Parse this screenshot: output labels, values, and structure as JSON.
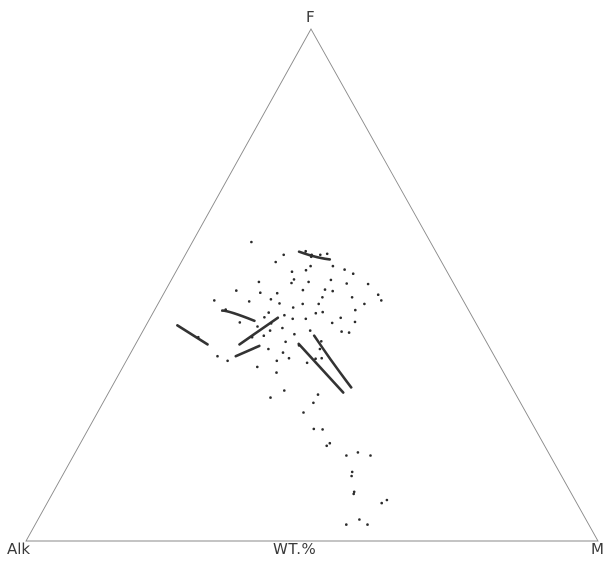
{
  "chart_data": {
    "type": "ternary-scatter",
    "vertices": {
      "top": "F",
      "left": "Alk",
      "right": "M"
    },
    "units_label": "WT.%",
    "grid": false,
    "colors": {
      "line": "#8a8a8a",
      "point": "#2b2b2b",
      "trend": "#333333"
    },
    "points": [
      [
        56.6,
        22.7,
        20.7
      ],
      [
        53.7,
        23.3,
        23.0
      ],
      [
        55.5,
        22.3,
        22.2
      ],
      [
        55.9,
        20.5,
        23.6
      ],
      [
        55.9,
        22.0,
        22.1
      ],
      [
        53.7,
        19.4,
        26.9
      ],
      [
        56.1,
        19.2,
        24.7
      ],
      [
        53.0,
        17.7,
        29.3
      ],
      [
        52.2,
        16.6,
        31.2
      ],
      [
        50.3,
        18.7,
        31.0
      ],
      [
        50.2,
        15.0,
        34.8
      ],
      [
        48.1,
        14.3,
        37.6
      ],
      [
        47.0,
        14.3,
        38.7
      ],
      [
        46.3,
        17.6,
        36.1
      ],
      [
        45.1,
        19.8,
        35.1
      ],
      [
        47.6,
        19.1,
        33.3
      ],
      [
        42.8,
        21.0,
        36.2
      ],
      [
        43.6,
        23.1,
        33.3
      ],
      [
        42.6,
        25.1,
        32.3
      ],
      [
        40.9,
        24.3,
        34.8
      ],
      [
        44.7,
        25.7,
        29.6
      ],
      [
        44.5,
        27.0,
        28.5
      ],
      [
        46.3,
        25.6,
        28.1
      ],
      [
        47.6,
        24.3,
        28.1
      ],
      [
        48.8,
        21.9,
        29.3
      ],
      [
        51.0,
        21.1,
        27.9
      ],
      [
        49.1,
        23.1,
        27.8
      ],
      [
        50.6,
        25.2,
        24.2
      ],
      [
        52.9,
        24.5,
        22.6
      ],
      [
        51.1,
        27.5,
        21.4
      ],
      [
        49.0,
        27.0,
        24.0
      ],
      [
        46.3,
        28.4,
        25.3
      ],
      [
        45.6,
        30.4,
        24.0
      ],
      [
        43.4,
        29.3,
        27.3
      ],
      [
        43.4,
        31.6,
        25.0
      ],
      [
        41.1,
        29.7,
        29.2
      ],
      [
        39.0,
        28.8,
        32.2
      ],
      [
        38.2,
        33.1,
        28.7
      ],
      [
        40.4,
        32.8,
        26.8
      ],
      [
        41.6,
        34.3,
        24.1
      ],
      [
        38.9,
        35.1,
        26.0
      ],
      [
        36.8,
        36.6,
        26.6
      ],
      [
        35.6,
        31.5,
        32.9
      ],
      [
        34.8,
        33.4,
        31.8
      ],
      [
        35.7,
        36.1,
        28.2
      ],
      [
        37.5,
        38.8,
        23.7
      ],
      [
        40.1,
        38.3,
        21.6
      ],
      [
        41.9,
        38.5,
        19.6
      ],
      [
        39.8,
        40.5,
        19.7
      ],
      [
        42.5,
        35.8,
        21.7
      ],
      [
        44.6,
        35.2,
        20.2
      ],
      [
        47.2,
        33.5,
        19.3
      ],
      [
        48.4,
        31.8,
        19.8
      ],
      [
        48.5,
        34.7,
        16.8
      ],
      [
        50.6,
        33.9,
        15.5
      ],
      [
        46.4,
        32.4,
        21.2
      ],
      [
        44.1,
        32.7,
        23.2
      ],
      [
        42.7,
        41.2,
        16.1
      ],
      [
        45.2,
        42.4,
        12.4
      ],
      [
        47.0,
        43.5,
        9.5
      ],
      [
        48.9,
        38.7,
        12.4
      ],
      [
        46.8,
        37.5,
        15.7
      ],
      [
        43.7,
        36.4,
        19.9
      ],
      [
        41.1,
        36.7,
        22.2
      ],
      [
        52.6,
        27.1,
        20.3
      ],
      [
        54.5,
        29.0,
        16.5
      ],
      [
        55.9,
        26.9,
        17.2
      ],
      [
        58.4,
        31.3,
        10.3
      ],
      [
        50.4,
        28.3,
        21.3
      ],
      [
        36.1,
        48.4,
        15.5
      ],
      [
        39.8,
        49.9,
        10.3
      ],
      [
        35.2,
        47.1,
        17.7
      ],
      [
        40.7,
        23.1,
        36.2
      ],
      [
        37.5,
        29.8,
        32.7
      ],
      [
        35.2,
        38.5,
        26.3
      ],
      [
        35.7,
        30.4,
        33.9
      ],
      [
        34.0,
        42.5,
        23.5
      ],
      [
        32.9,
        39.7,
        27.4
      ],
      [
        28.6,
        34.6,
        36.8
      ],
      [
        27.0,
        36.2,
        36.8
      ],
      [
        29.4,
        40.1,
        30.5
      ],
      [
        28.0,
        43.2,
        28.8
      ],
      [
        25.1,
        38.9,
        36.0
      ],
      [
        21.8,
        37.2,
        41.0
      ],
      [
        21.9,
        38.7,
        39.4
      ],
      [
        19.1,
        37.3,
        43.6
      ],
      [
        18.6,
        38.1,
        43.3
      ],
      [
        16.7,
        35.6,
        47.7
      ],
      [
        17.3,
        33.3,
        49.4
      ],
      [
        16.7,
        31.4,
        51.9
      ],
      [
        13.5,
        36.2,
        50.3
      ],
      [
        12.7,
        36.7,
        50.6
      ],
      [
        9.6,
        37.8,
        52.6
      ],
      [
        9.2,
        38.1,
        52.7
      ],
      [
        8.0,
        32.9,
        59.1
      ],
      [
        7.4,
        34.1,
        58.5
      ],
      [
        4.2,
        39.6,
        56.2
      ],
      [
        3.2,
        38.7,
        58.1
      ],
      [
        3.2,
        42.4,
        54.4
      ]
    ],
    "trend_lines": [
      [
        [
          55.0,
          19.3,
          25.7
        ],
        [
          55.5,
          21.5,
          23.0
        ],
        [
          56.5,
          23.9,
          19.6
        ]
      ],
      [
        [
          38.4,
          49.0,
          12.6
        ],
        [
          42.1,
          52.4,
          5.5
        ]
      ],
      [
        [
          38.1,
          40.1,
          21.8
        ],
        [
          36.1,
          45.2,
          18.7
        ]
      ],
      [
        [
          43.0,
          38.5,
          18.5
        ],
        [
          44.5,
          41.4,
          14.1
        ],
        [
          45.0,
          43.1,
          11.9
        ]
      ],
      [
        [
          43.6,
          34.1,
          22.3
        ],
        [
          38.4,
          43.4,
          18.2
        ]
      ],
      [
        [
          30.0,
          28.1,
          41.9
        ],
        [
          35.0,
          28.9,
          36.1
        ],
        [
          40.1,
          29.5,
          30.4
        ]
      ],
      [
        [
          29.0,
          30.0,
          41.0
        ],
        [
          38.5,
          33.0,
          28.5
        ]
      ]
    ]
  }
}
